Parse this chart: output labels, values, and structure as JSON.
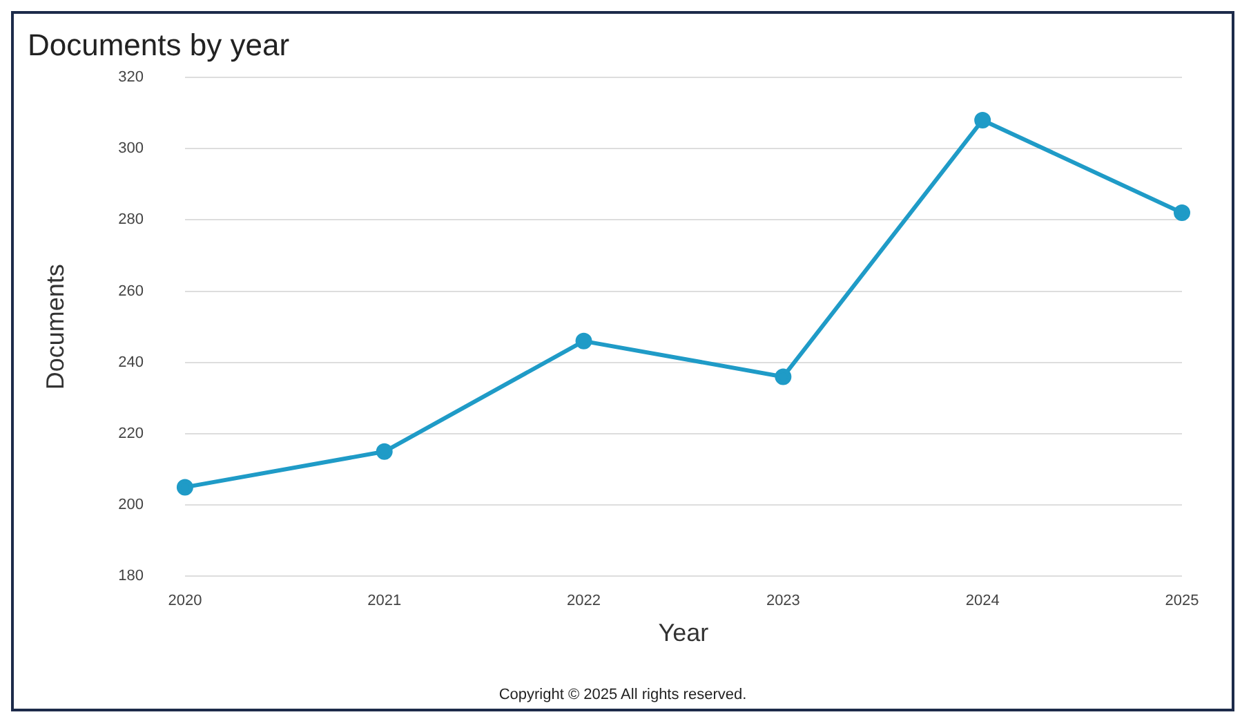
{
  "chart_data": {
    "type": "line",
    "title": "Documents by year",
    "xlabel": "Year",
    "ylabel": "Documents",
    "categories": [
      "2020",
      "2021",
      "2022",
      "2023",
      "2024",
      "2025"
    ],
    "series": [
      {
        "color": "#1f9bc7",
        "values": [
          205,
          215,
          246,
          236,
          308,
          282
        ]
      }
    ],
    "ylim": [
      180,
      320
    ],
    "yticks": [
      180,
      200,
      220,
      240,
      260,
      280,
      300,
      320
    ],
    "grid": "y",
    "legend": false,
    "marker": "circle",
    "line_style": "solid",
    "annotations": [
      "Copyright © 2025 All rights reserved."
    ]
  }
}
